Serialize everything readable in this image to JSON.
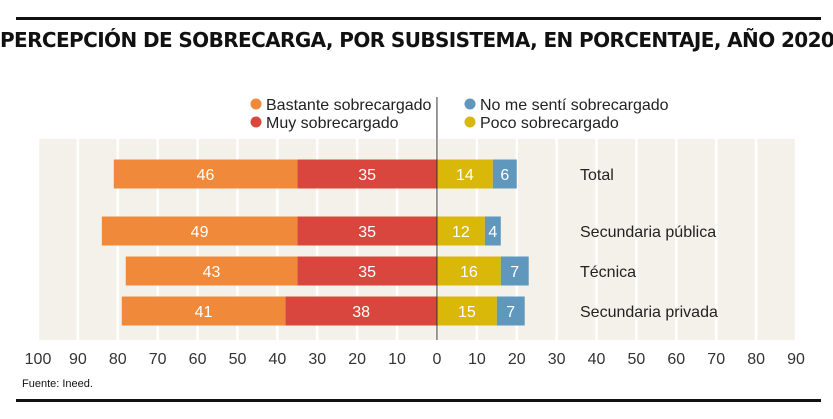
{
  "chart_data": {
    "type": "bar",
    "orientation": "horizontal-diverging",
    "title": "PERCEPCIÓN DE SOBRECARGA, POR SUBSISTEMA, EN PORCENTAJE, AÑO 2020",
    "source": "Fuente: Ineed.",
    "categories": [
      "Total",
      "Secundaria pública",
      "Técnica",
      "Secundaria privada"
    ],
    "series": [
      {
        "name": "Muy sobrecargado",
        "side": "left",
        "color": "#d8463e",
        "values": [
          35,
          35,
          35,
          38
        ]
      },
      {
        "name": "Bastante sobrecargado",
        "side": "left",
        "color": "#f08a3a",
        "values": [
          46,
          49,
          43,
          41
        ]
      },
      {
        "name": "Poco sobrecargado",
        "side": "right",
        "color": "#d9b80a",
        "values": [
          14,
          12,
          16,
          15
        ]
      },
      {
        "name": "No me sentí sobrecargado",
        "side": "right",
        "color": "#5f97bd",
        "values": [
          6,
          4,
          7,
          7
        ]
      }
    ],
    "legend_order": [
      "Bastante sobrecargado",
      "Muy sobrecargado",
      "No me sentí sobrecargado",
      "Poco sobrecargado"
    ],
    "x_ticks": [
      "100",
      "90",
      "80",
      "70",
      "60",
      "50",
      "40",
      "30",
      "20",
      "10",
      "0",
      "10",
      "20",
      "30",
      "40",
      "50",
      "60",
      "70",
      "80",
      "90"
    ],
    "xlim": [
      -100,
      90
    ],
    "grid": true,
    "background_color": "#f4f1ea",
    "label_color": "#ffffff"
  }
}
